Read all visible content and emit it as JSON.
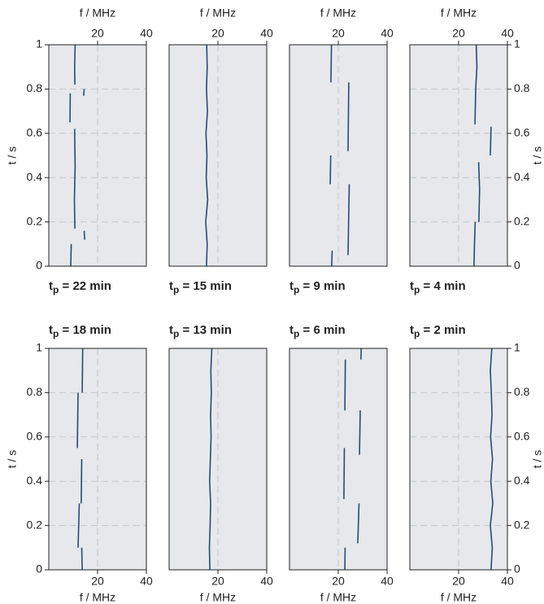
{
  "chart_data": [
    {
      "type": "line",
      "title": [
        "t",
        "p",
        " = 22 min"
      ],
      "xlabel": "f / MHz",
      "ylabel": "t / s",
      "xaxis": "top",
      "yaxis": "left",
      "xlim": [
        0,
        40
      ],
      "xticks": [
        20,
        40
      ],
      "ylim": [
        0,
        1
      ],
      "yticks": [
        0,
        0.2,
        0.4,
        0.6,
        0.8,
        1
      ],
      "grid": true,
      "series": [
        {
          "color": "#1f4e79",
          "x": [
            9,
            9.2,
            null,
            14.7,
            14.5,
            null,
            10.7,
            10.5,
            10.8,
            10.6,
            null,
            8.7,
            8.8,
            null,
            14.3,
            14.5,
            null,
            10.7,
            10.6,
            10.8
          ],
          "y": [
            0,
            0.1,
            null,
            0.12,
            0.16,
            null,
            0.17,
            0.3,
            0.45,
            0.62,
            null,
            0.65,
            0.78,
            null,
            0.77,
            0.8,
            null,
            0.82,
            0.9,
            1
          ]
        }
      ]
    },
    {
      "type": "line",
      "title": [
        "t",
        "p",
        " = 15 min"
      ],
      "xlabel": "f / MHz",
      "xaxis": "top",
      "yaxis": "none",
      "xlim": [
        0,
        40
      ],
      "xticks": [
        20,
        40
      ],
      "ylim": [
        0,
        1
      ],
      "grid": true,
      "series": [
        {
          "color": "#1f4e79",
          "x": [
            15.3,
            15.6,
            15,
            15.8,
            15.2,
            15.5,
            15.1,
            15.7,
            15.3,
            15.6,
            15.4
          ],
          "y": [
            0,
            0.1,
            0.2,
            0.3,
            0.4,
            0.5,
            0.6,
            0.7,
            0.8,
            0.9,
            1
          ]
        }
      ]
    },
    {
      "type": "line",
      "title": [
        "t",
        "p",
        " = 9 min"
      ],
      "xlabel": "f / MHz",
      "xaxis": "top",
      "yaxis": "none",
      "xlim": [
        0,
        40
      ],
      "xticks": [
        20,
        40
      ],
      "ylim": [
        0,
        1
      ],
      "grid": true,
      "series": [
        {
          "color": "#1f4e79",
          "x": [
            17.3,
            17.5,
            null,
            24,
            24.5,
            null,
            16.7,
            16.9,
            null,
            24,
            24.3,
            null,
            17,
            17.2
          ],
          "y": [
            0,
            0.07,
            null,
            0.05,
            0.37,
            null,
            0.37,
            0.5,
            null,
            0.52,
            0.83,
            null,
            0.83,
            1
          ]
        }
      ]
    },
    {
      "type": "line",
      "title": [
        "t",
        "p",
        " = 4 min"
      ],
      "xlabel": "f / MHz",
      "ylabel": "t / s",
      "xaxis": "top",
      "yaxis": "right",
      "xlim": [
        0,
        40
      ],
      "xticks": [
        20,
        40
      ],
      "ylim": [
        0,
        1
      ],
      "yticks": [
        0,
        0.2,
        0.4,
        0.6,
        0.8,
        1
      ],
      "grid": true,
      "series": [
        {
          "color": "#1f4e79",
          "x": [
            26.3,
            26.5,
            26.8,
            null,
            28.3,
            28.6,
            28.2,
            null,
            33,
            33.3,
            null,
            26.7,
            27,
            27.5,
            27.2
          ],
          "y": [
            0,
            0.1,
            0.2,
            null,
            0.2,
            0.35,
            0.47,
            null,
            0.5,
            0.63,
            null,
            0.64,
            0.8,
            0.9,
            1
          ]
        }
      ]
    },
    {
      "type": "line",
      "title": [
        "t",
        "p",
        " = 18 min"
      ],
      "xlabel": "f / MHz",
      "ylabel": "t / s",
      "xaxis": "bottom",
      "yaxis": "left",
      "xlim": [
        0,
        40
      ],
      "xticks": [
        20,
        40
      ],
      "ylim": [
        0,
        1
      ],
      "yticks": [
        0,
        0.2,
        0.4,
        0.6,
        0.8,
        1
      ],
      "grid": true,
      "series": [
        {
          "color": "#1f4e79",
          "x": [
            13.7,
            13.5,
            null,
            12,
            12.5,
            null,
            13.3,
            13.5,
            null,
            11.7,
            12,
            null,
            13.7,
            13.9
          ],
          "y": [
            0,
            0.1,
            null,
            0.1,
            0.3,
            null,
            0.3,
            0.5,
            null,
            0.55,
            0.8,
            null,
            0.8,
            1
          ]
        }
      ]
    },
    {
      "type": "line",
      "title": [
        "t",
        "p",
        " = 13 min"
      ],
      "xlabel": "f / MHz",
      "xaxis": "bottom",
      "yaxis": "none",
      "xlim": [
        0,
        40
      ],
      "xticks": [
        20,
        40
      ],
      "ylim": [
        0,
        1
      ],
      "grid": true,
      "series": [
        {
          "color": "#1f4e79",
          "x": [
            16.7,
            16.5,
            16.8,
            17,
            16.6,
            16.9,
            17.2,
            17,
            17.3,
            17.1,
            17.5
          ],
          "y": [
            0,
            0.1,
            0.2,
            0.3,
            0.4,
            0.5,
            0.6,
            0.7,
            0.8,
            0.9,
            1
          ]
        }
      ]
    },
    {
      "type": "line",
      "title": [
        "t",
        "p",
        " = 6 min"
      ],
      "xlabel": "f / MHz",
      "xaxis": "bottom",
      "yaxis": "none",
      "xlim": [
        0,
        40
      ],
      "xticks": [
        20,
        40
      ],
      "ylim": [
        0,
        1
      ],
      "grid": true,
      "series": [
        {
          "color": "#1f4e79",
          "x": [
            22.7,
            22.8,
            null,
            28,
            28.5,
            null,
            22.3,
            22.5,
            null,
            28.7,
            29,
            null,
            22.7,
            22.9,
            null,
            29.3,
            29.4
          ],
          "y": [
            0,
            0.1,
            null,
            0.12,
            0.3,
            null,
            0.32,
            0.55,
            null,
            0.52,
            0.72,
            null,
            0.72,
            0.95,
            null,
            0.95,
            1
          ]
        }
      ]
    },
    {
      "type": "line",
      "title": [
        "t",
        "p",
        " = 2 min"
      ],
      "xlabel": "f / MHz",
      "ylabel": "t / s",
      "xaxis": "bottom",
      "yaxis": "right",
      "xlim": [
        0,
        40
      ],
      "xticks": [
        20,
        40
      ],
      "ylim": [
        0,
        1
      ],
      "yticks": [
        0,
        0.2,
        0.4,
        0.6,
        0.8,
        1
      ],
      "grid": true,
      "series": [
        {
          "color": "#1f4e79",
          "x": [
            33.3,
            33.8,
            33,
            34,
            33.2,
            33.9,
            33.1,
            33.7,
            33.4,
            33,
            33.6
          ],
          "y": [
            0,
            0.1,
            0.2,
            0.3,
            0.4,
            0.5,
            0.6,
            0.7,
            0.8,
            0.9,
            1
          ]
        }
      ]
    }
  ]
}
